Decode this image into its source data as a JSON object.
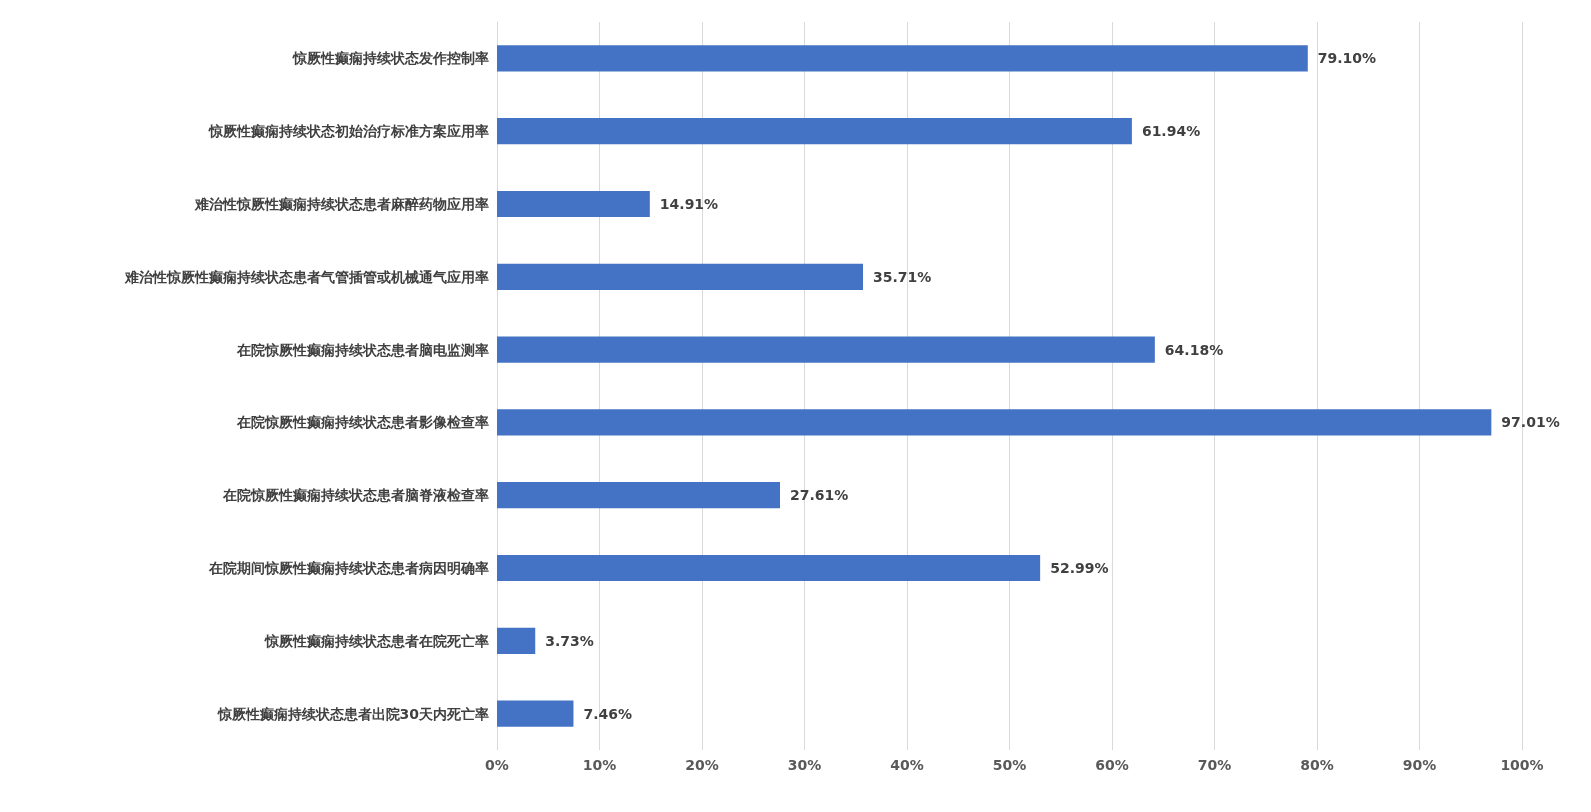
{
  "chart_data": {
    "type": "bar",
    "orientation": "horizontal",
    "categories": [
      "惊厥性癫痫持续状态发作控制率",
      "惊厥性癫痫持续状态初始治疗标准方案应用率",
      "难治性惊厥性癫痫持续状态患者麻醉药物应用率",
      "难治性惊厥性癫痫持续状态患者气管插管或机械通气应用率",
      "在院惊厥性癫痫持续状态患者脑电监测率",
      "在院惊厥性癫痫持续状态患者影像检查率",
      "在院惊厥性癫痫持续状态患者脑脊液检查率",
      "在院期间惊厥性癫痫持续状态患者病因明确率",
      "惊厥性癫痫持续状态患者在院死亡率",
      "惊厥性癫痫持续状态患者出院30天内死亡率"
    ],
    "values": [
      79.1,
      61.94,
      14.91,
      35.71,
      64.18,
      97.01,
      27.61,
      52.99,
      3.73,
      7.46
    ],
    "value_labels": [
      "79.10%",
      "61.94%",
      "14.91%",
      "35.71%",
      "64.18%",
      "97.01%",
      "27.61%",
      "52.99%",
      "3.73%",
      "7.46%"
    ],
    "color": "#4472c4",
    "xlim": [
      0,
      100
    ],
    "xticks": [
      {
        "value": 0,
        "label": "0%"
      },
      {
        "value": 10,
        "label": "10%"
      },
      {
        "value": 20,
        "label": "20%"
      },
      {
        "value": 30,
        "label": "30%"
      },
      {
        "value": 40,
        "label": "40%"
      },
      {
        "value": 50,
        "label": "50%"
      },
      {
        "value": 60,
        "label": "60%"
      },
      {
        "value": 70,
        "label": "70%"
      },
      {
        "value": 80,
        "label": "80%"
      },
      {
        "value": 90,
        "label": "90%"
      },
      {
        "value": 100,
        "label": "100%"
      }
    ],
    "grid": "x"
  }
}
